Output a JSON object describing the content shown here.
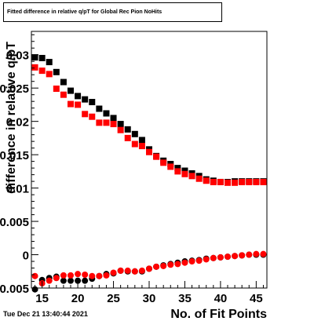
{
  "title": "Fitted difference in relative q/pT for Global Rec Pion NoHits",
  "timestamp": "Tue Dec 21 13:40:44 2021",
  "chart_data": {
    "type": "scatter",
    "title": "Fitted difference in relative q/pT for Global Rec Pion NoHits",
    "xlabel": "No. of Fit Points",
    "ylabel": "difference in relative q/pT",
    "xlim": [
      13.5,
      46.5
    ],
    "ylim": [
      -0.005,
      0.0335
    ],
    "x_ticks": [
      15,
      20,
      25,
      30,
      35,
      40,
      45
    ],
    "y_ticks": [
      -0.005,
      0,
      0.005,
      0.01,
      0.015,
      0.02,
      0.025,
      0.03
    ],
    "y_tick_labels": [
      "0.005",
      "0",
      "0.005",
      "0.01",
      "0.015",
      "0.02",
      "0.025",
      "0.03"
    ],
    "grid": false,
    "colors": {
      "black": "#000000",
      "red": "#ff0000"
    },
    "series": [
      {
        "color": "#000000",
        "marker": "square",
        "x": [
          14,
          15,
          16,
          17,
          18,
          19,
          20,
          21,
          22,
          23,
          24,
          25,
          26,
          27,
          28,
          29,
          30,
          31,
          32,
          33,
          34,
          35,
          36,
          37,
          38,
          39,
          40,
          41,
          42,
          43,
          44,
          45,
          46
        ],
        "values": [
          0.0296,
          0.0295,
          0.0289,
          0.0274,
          0.0259,
          0.0246,
          0.0238,
          0.0233,
          0.0229,
          0.0219,
          0.0212,
          0.0205,
          0.0196,
          0.0188,
          0.0181,
          0.0172,
          0.0158,
          0.0148,
          0.0141,
          0.0136,
          0.013,
          0.0126,
          0.0122,
          0.0118,
          0.0113,
          0.0111,
          0.0109,
          0.0109,
          0.011,
          0.011,
          0.011,
          0.011,
          0.011
        ]
      },
      {
        "color": "#ff0000",
        "marker": "square",
        "x": [
          14,
          15,
          16,
          17,
          18,
          19,
          20,
          21,
          22,
          23,
          24,
          25,
          26,
          27,
          28,
          29,
          30,
          31,
          32,
          33,
          34,
          35,
          36,
          37,
          38,
          39,
          40,
          41,
          42,
          43,
          44,
          45,
          46
        ],
        "values": [
          0.0281,
          0.0276,
          0.0271,
          0.0249,
          0.024,
          0.0226,
          0.0225,
          0.0211,
          0.0207,
          0.0198,
          0.0198,
          0.0196,
          0.0187,
          0.0175,
          0.0166,
          0.0163,
          0.0154,
          0.0147,
          0.0138,
          0.0132,
          0.0125,
          0.0121,
          0.0118,
          0.0114,
          0.0111,
          0.0109,
          0.0109,
          0.0108,
          0.0108,
          0.0109,
          0.0109,
          0.0109,
          0.0109
        ]
      },
      {
        "color": "#000000",
        "marker": "circle",
        "x": [
          14,
          15,
          16,
          17,
          18,
          19,
          20,
          21,
          22,
          23,
          24,
          25,
          26,
          27,
          28,
          29,
          30,
          31,
          32,
          33,
          34,
          35,
          36,
          37,
          38,
          39,
          40,
          41,
          42,
          43,
          44,
          45,
          46
        ],
        "values": [
          -0.0052,
          -0.0038,
          -0.0035,
          -0.0033,
          -0.0039,
          -0.0039,
          -0.0039,
          -0.0039,
          -0.0036,
          -0.0032,
          -0.0029,
          -0.0028,
          -0.0024,
          -0.0025,
          -0.0025,
          -0.0025,
          -0.0021,
          -0.0018,
          -0.0016,
          -0.0014,
          -0.0012,
          -0.001,
          -0.0009,
          -0.0008,
          -0.0006,
          -0.0005,
          -0.0004,
          -0.0003,
          -0.0002,
          -0.0001,
          0.0,
          0.0,
          0.0
        ]
      },
      {
        "color": "#ff0000",
        "marker": "circle",
        "x": [
          14,
          15,
          16,
          17,
          18,
          19,
          20,
          21,
          22,
          23,
          24,
          25,
          26,
          27,
          28,
          29,
          30,
          31,
          32,
          33,
          34,
          35,
          36,
          37,
          38,
          39,
          40,
          41,
          42,
          43,
          44,
          45,
          46
        ],
        "values": [
          -0.0032,
          -0.0043,
          -0.0039,
          -0.0035,
          -0.0031,
          -0.0031,
          -0.0029,
          -0.003,
          -0.0032,
          -0.0032,
          -0.0031,
          -0.0027,
          -0.0024,
          -0.0024,
          -0.0025,
          -0.0024,
          -0.0021,
          -0.0018,
          -0.0017,
          -0.0015,
          -0.0014,
          -0.0012,
          -0.001,
          -0.0009,
          -0.0007,
          -0.0005,
          -0.0004,
          -0.0003,
          -0.0002,
          -0.0001,
          0.0,
          0.0001,
          0.0001
        ]
      }
    ]
  }
}
